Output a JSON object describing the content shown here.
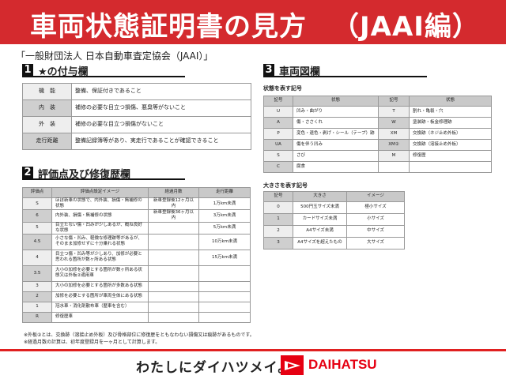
{
  "header": {
    "title": "車両状態証明書の見方",
    "subtitle_tag": "（JAAI編）"
  },
  "organization": "「一般財団法人 日本自動車査定協会（JAAI）」",
  "section1": {
    "num": "1",
    "title": "★の付与欄",
    "rows": [
      {
        "k": "機　能",
        "v": "整備、保証付きであること"
      },
      {
        "k": "内　装",
        "v": "補修の必要な目立つ損傷、悪臭等がないこと"
      },
      {
        "k": "外　装",
        "v": "補修の必要な目立つ損傷がないこと"
      },
      {
        "k": "走行距離",
        "v": "整備記録簿等があり、実走行であることが確認できること"
      }
    ]
  },
  "section2": {
    "num": "2",
    "title": "評価点及び修復歴欄",
    "headers": [
      "評価点",
      "評価点設定イメージ",
      "経過月数",
      "走行距離"
    ],
    "rows": [
      [
        "S",
        "ほぼ新車の状態で、内外装、損傷・無補修の状態",
        "新車登録後12ヶ月以内",
        "1万km未満"
      ],
      [
        "6",
        "内外装、損傷・無補修の状態",
        "新車登録後36ヶ月以内",
        "3万km未満"
      ],
      [
        "5",
        "目立たない傷・凹みが少しあるが、概ね良好な状態",
        "",
        "5万km未満"
      ],
      [
        "4.5",
        "小さな傷・凹み、軽微な修理跡等があるが、そのまま加修せずに十分乗れる状態",
        "",
        "10万km未満"
      ],
      [
        "4",
        "目立つ傷・凹み等が少しあり、加修が必要と思われる箇所が数ヶ所ある状態",
        "",
        "15万km未満"
      ],
      [
        "3.5",
        "大小の加修を必要とする箇所が数ヶ所ある状態又は外板②適用車",
        "",
        ""
      ],
      [
        "3",
        "大小の加修を必要とする箇所が多数ある状態",
        "",
        ""
      ],
      [
        "2",
        "加修を必要とする箇所が車両全体にある状態",
        "",
        ""
      ],
      [
        "1",
        "冠水車・消化剤散布車（歴車を含む）",
        "",
        ""
      ],
      [
        "R",
        "修復歴車",
        "",
        ""
      ]
    ]
  },
  "section3": {
    "num": "3",
    "title": "車両図欄",
    "state_caption": "状態を表す記号",
    "state_headers": [
      "記号",
      "状態",
      "記号",
      "状態"
    ],
    "state_rows": [
      [
        "U",
        "凹み・曲がり",
        "T",
        "割れ・亀裂・穴"
      ],
      [
        "A",
        "傷・ささくれ",
        "W",
        "塗装跡・板金修理跡"
      ],
      [
        "P",
        "変色・退色・剥げ・シール（テープ）跡",
        "XM",
        "交換跡（ネジ止め外板）"
      ],
      [
        "UA",
        "傷を伴う凹み",
        "XM②",
        "交換跡（溶接止め外板）"
      ],
      [
        "S",
        "さび",
        "M",
        "修復歴"
      ],
      [
        "C",
        "腐食",
        "",
        ""
      ]
    ],
    "size_caption": "大きさを表す記号",
    "size_headers": [
      "記号",
      "大きさ",
      "イメージ"
    ],
    "size_rows": [
      [
        "0",
        "500円玉サイズ未満",
        "極小サイズ"
      ],
      [
        "1",
        "カードサイズ未満",
        "小サイズ"
      ],
      [
        "2",
        "A4サイズ未満",
        "中サイズ"
      ],
      [
        "3",
        "A4サイズを超えたもの",
        "大サイズ"
      ]
    ]
  },
  "notes": [
    "※外板②とは、交換跡（溶接止め外板）及び骨格部位に修復歴をともなわない損傷又は痕跡があるものです。",
    "※経過月数の計算は、初年度登録月を一ヶ月として計算します。"
  ],
  "footer": {
    "slogan": "わたしにダイハツメイ。",
    "brand": "DAIHATSU",
    "brand_color": "#e60012"
  }
}
